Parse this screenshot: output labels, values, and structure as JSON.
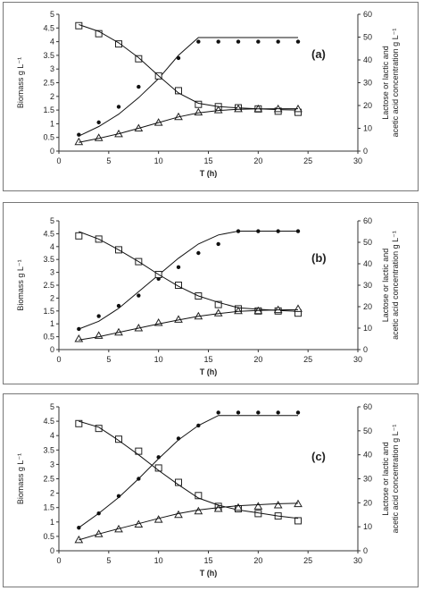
{
  "chart_data": [
    {
      "type": "line",
      "panel_label": "(a)",
      "xlabel": "T (h)",
      "ylabel_left": "Biomass g L⁻¹",
      "ylabel_right": "Lactose or lactic and acetic acid concentration g L⁻¹",
      "xlim": [
        0,
        30
      ],
      "xticks": [
        0,
        5,
        10,
        15,
        20,
        25,
        30
      ],
      "ylim_left": [
        0,
        5
      ],
      "yticks_left": [
        0,
        0.5,
        1,
        1.5,
        2,
        2.5,
        3,
        3.5,
        4,
        4.5,
        5
      ],
      "ylim_right": [
        0,
        60
      ],
      "yticks_right": [
        0,
        10,
        20,
        30,
        40,
        50,
        60
      ],
      "series": [
        {
          "marker": "circle",
          "axis": "left",
          "x": [
            2,
            4,
            6,
            8,
            10,
            12,
            14,
            16,
            18,
            20,
            22,
            24
          ],
          "y": [
            0.6,
            1.05,
            1.62,
            2.35,
            2.75,
            3.4,
            4.0,
            4.0,
            4.0,
            4.0,
            4.0,
            4.0
          ]
        },
        {
          "marker": "none",
          "axis": "left",
          "x": [
            2,
            4,
            6,
            8,
            10,
            12,
            14,
            16,
            18,
            20,
            22,
            24
          ],
          "y": [
            0.55,
            0.9,
            1.35,
            1.95,
            2.65,
            3.5,
            4.15,
            4.15,
            4.15,
            4.15,
            4.15,
            4.15
          ]
        },
        {
          "marker": "square",
          "axis": "right",
          "x": [
            2,
            4,
            6,
            8,
            10,
            12,
            14,
            16,
            18,
            20,
            22,
            24
          ],
          "y": [
            55,
            51.5,
            47,
            40.5,
            33,
            26.5,
            20.5,
            19.5,
            19,
            18.5,
            17.5,
            17
          ]
        },
        {
          "marker": "none",
          "axis": "right",
          "x": [
            2,
            4,
            6,
            8,
            10,
            12,
            14,
            16,
            18,
            20,
            22,
            24
          ],
          "y": [
            55.5,
            52.5,
            47.5,
            41,
            33,
            25.5,
            21,
            19.5,
            19,
            18.5,
            18.2,
            18
          ]
        },
        {
          "marker": "triangle",
          "axis": "right",
          "x": [
            2,
            4,
            6,
            8,
            10,
            12,
            14,
            16,
            18,
            20,
            22,
            24
          ],
          "y": [
            4,
            5.8,
            7.5,
            10,
            12.5,
            15,
            17,
            18,
            18.5,
            18.5,
            18.5,
            18.5
          ]
        },
        {
          "marker": "none",
          "axis": "right",
          "x": [
            2,
            4,
            6,
            8,
            10,
            12,
            14,
            16,
            18,
            20,
            22,
            24
          ],
          "y": [
            3.8,
            5.6,
            7.6,
            10,
            12.5,
            15,
            16.8,
            17.8,
            18.3,
            18.5,
            18.6,
            18.6
          ]
        }
      ]
    },
    {
      "type": "line",
      "panel_label": "(b)",
      "xlabel": "T (h)",
      "ylabel_left": "Biomass g L⁻¹",
      "ylabel_right": "Lactose or lactic and acetic acid concentration g L⁻¹",
      "xlim": [
        0,
        30
      ],
      "xticks": [
        0,
        5,
        10,
        15,
        20,
        25,
        30
      ],
      "ylim_left": [
        0,
        5
      ],
      "yticks_left": [
        0,
        0.5,
        1,
        1.5,
        2,
        2.5,
        3,
        3.5,
        4,
        4.5,
        5
      ],
      "ylim_right": [
        0,
        60
      ],
      "yticks_right": [
        0,
        10,
        20,
        30,
        40,
        50,
        60
      ],
      "series": [
        {
          "marker": "circle",
          "axis": "left",
          "x": [
            2,
            4,
            6,
            8,
            10,
            12,
            14,
            16,
            18,
            20,
            22,
            24
          ],
          "y": [
            0.8,
            1.3,
            1.7,
            2.1,
            2.75,
            3.2,
            3.75,
            4.1,
            4.6,
            4.6,
            4.6,
            4.6
          ]
        },
        {
          "marker": "none",
          "axis": "left",
          "x": [
            2,
            4,
            6,
            8,
            10,
            12,
            14,
            16,
            18,
            20,
            22,
            24
          ],
          "y": [
            0.8,
            1.1,
            1.6,
            2.25,
            2.9,
            3.55,
            4.1,
            4.45,
            4.6,
            4.6,
            4.6,
            4.6
          ]
        },
        {
          "marker": "square",
          "axis": "right",
          "x": [
            2,
            4,
            6,
            8,
            10,
            12,
            14,
            16,
            18,
            20,
            22,
            24
          ],
          "y": [
            53,
            51.5,
            46.5,
            41,
            35,
            30,
            25,
            21,
            19,
            18,
            18,
            17
          ]
        },
        {
          "marker": "none",
          "axis": "right",
          "x": [
            2,
            4,
            6,
            8,
            10,
            12,
            14,
            16,
            18,
            20,
            22,
            24
          ],
          "y": [
            55,
            51.5,
            46.5,
            41,
            35,
            29.5,
            25,
            22,
            19.5,
            18.8,
            18.2,
            17.8
          ]
        },
        {
          "marker": "triangle",
          "axis": "right",
          "x": [
            2,
            4,
            6,
            8,
            10,
            12,
            14,
            16,
            18,
            20,
            22,
            24
          ],
          "y": [
            5,
            6.5,
            8,
            10,
            12.5,
            14,
            15.5,
            17,
            18,
            18,
            18.5,
            19
          ]
        },
        {
          "marker": "none",
          "axis": "right",
          "x": [
            2,
            4,
            6,
            8,
            10,
            12,
            14,
            16,
            18,
            20,
            22,
            24
          ],
          "y": [
            4.5,
            6,
            8,
            10,
            12,
            13.8,
            15.5,
            16.8,
            17.8,
            18.2,
            18.5,
            18.6
          ]
        }
      ]
    },
    {
      "type": "line",
      "panel_label": "(c)",
      "xlabel": "T (h)",
      "ylabel_left": "Biomass g L⁻¹",
      "ylabel_right": "Lactose or lactic and acetic acid concentration g L⁻¹",
      "xlim": [
        0,
        30
      ],
      "xticks": [
        0,
        5,
        10,
        15,
        20,
        25,
        30
      ],
      "ylim_left": [
        0,
        5
      ],
      "yticks_left": [
        0,
        0.5,
        1,
        1.5,
        2,
        2.5,
        3,
        3.5,
        4,
        4.5,
        5
      ],
      "ylim_right": [
        0,
        60
      ],
      "yticks_right": [
        0,
        10,
        20,
        30,
        40,
        50,
        60
      ],
      "series": [
        {
          "marker": "circle",
          "axis": "left",
          "x": [
            2,
            4,
            6,
            8,
            10,
            12,
            14,
            16,
            18,
            20,
            22,
            24
          ],
          "y": [
            0.8,
            1.3,
            1.9,
            2.5,
            3.25,
            3.9,
            4.35,
            4.8,
            4.8,
            4.8,
            4.8,
            4.8
          ]
        },
        {
          "marker": "none",
          "axis": "left",
          "x": [
            2,
            4,
            6,
            8,
            10,
            12,
            14,
            16,
            18,
            20,
            22,
            24
          ],
          "y": [
            0.8,
            1.3,
            1.85,
            2.5,
            3.2,
            3.85,
            4.35,
            4.7,
            4.7,
            4.7,
            4.7,
            4.7
          ]
        },
        {
          "marker": "square",
          "axis": "right",
          "x": [
            2,
            4,
            6,
            8,
            10,
            12,
            14,
            16,
            18,
            20,
            22,
            24
          ],
          "y": [
            53,
            51,
            46.5,
            41.5,
            34.5,
            28.5,
            23,
            18.5,
            17.5,
            15.5,
            14.5,
            12.5
          ]
        },
        {
          "marker": "none",
          "axis": "right",
          "x": [
            2,
            4,
            6,
            8,
            10,
            12,
            14,
            16,
            18,
            20,
            22,
            24
          ],
          "y": [
            54,
            51.5,
            46,
            40,
            33.5,
            27.5,
            22,
            19,
            17,
            15.8,
            14.5,
            13.5
          ]
        },
        {
          "marker": "triangle",
          "axis": "right",
          "x": [
            2,
            4,
            6,
            8,
            10,
            12,
            14,
            16,
            18,
            20,
            22,
            24
          ],
          "y": [
            4.5,
            7,
            9,
            11,
            13,
            15,
            16.5,
            17.5,
            18,
            18.5,
            19,
            19.5
          ]
        },
        {
          "marker": "none",
          "axis": "right",
          "x": [
            2,
            4,
            6,
            8,
            10,
            12,
            14,
            16,
            18,
            20,
            22,
            24
          ],
          "y": [
            4.5,
            7,
            9.2,
            11.3,
            13.5,
            15.5,
            17,
            18,
            18.8,
            19.2,
            19.6,
            19.8
          ]
        }
      ]
    }
  ]
}
